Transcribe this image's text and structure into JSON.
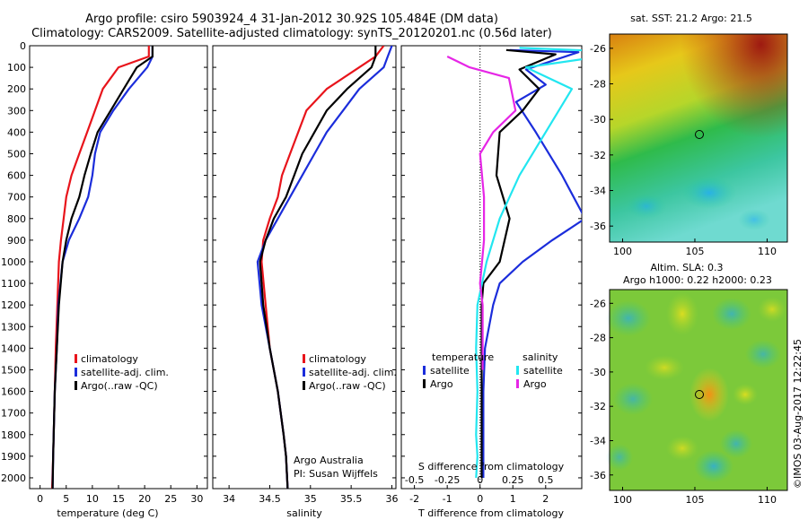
{
  "header": {
    "line1": "Argo profile: csiro 5903924_4 31-Jan-2012 30.92S 105.484E (DM data)",
    "line2": "Climatology: CARS2009. Satellite-adjusted climatology: synTS_20120201.nc (0.56d later)"
  },
  "colors": {
    "climatology": "#e8141b",
    "satellite": "#1b2ddb",
    "argo": "#000000",
    "satellite_sal": "#22e6f0",
    "argo_sal": "#e626e6"
  },
  "depth_ticks": [
    "0",
    "100",
    "200",
    "300",
    "400",
    "500",
    "600",
    "700",
    "800",
    "900",
    "1000",
    "1100",
    "1200",
    "1300",
    "1400",
    "1500",
    "1600",
    "1700",
    "1800",
    "1900",
    "2000"
  ],
  "temp_panel": {
    "xlabel": "temperature (deg C)",
    "xticks": [
      "0",
      "5",
      "10",
      "15",
      "20",
      "25",
      "30"
    ],
    "legend": [
      "climatology",
      "satellite-adj. clim.",
      "Argo(..raw -QC)"
    ]
  },
  "sal_panel": {
    "xlabel": "salinity",
    "xticks": [
      "34",
      "34.5",
      "35",
      "35.5",
      "36"
    ],
    "legend": [
      "climatology",
      "satellite-adj. clim.",
      "Argo(..raw -QC)"
    ],
    "note1": "Argo Australia",
    "note2": "PI: Susan Wijffels"
  },
  "diff_panel": {
    "xlabel": "T difference from climatology",
    "xlabel_top": "S difference from climatology",
    "xticks_t": [
      "-2",
      "-1",
      "0",
      "1",
      "2"
    ],
    "xticks_s": [
      "-0.5",
      "-0.25",
      "0",
      "0.25",
      "0.5"
    ],
    "legend_head_t": "temperature",
    "legend_head_s": "salinity",
    "legend_t": [
      "satellite",
      "Argo"
    ],
    "legend_s": [
      "satellite",
      "Argo"
    ]
  },
  "map_sst": {
    "title": "sat. SST: 21.2  Argo: 21.5",
    "yticks": [
      "-26",
      "-28",
      "-30",
      "-32",
      "-34",
      "-36"
    ],
    "xticks": [
      "100",
      "105",
      "110"
    ]
  },
  "map_sla": {
    "title1": "Altim. SLA: 0.3",
    "title2": "Argo h1000: 0.22  h2000: 0.23",
    "yticks": [
      "-26",
      "-28",
      "-30",
      "-32",
      "-34",
      "-36"
    ],
    "xticks": [
      "100",
      "105",
      "110"
    ]
  },
  "copyright": "©IMOS 03-Aug-2017 12:22:45",
  "chart_data": [
    {
      "type": "line",
      "xlabel": "temperature (deg C)",
      "ylabel": "",
      "xlim": [
        -2,
        32
      ],
      "ylim": [
        2050,
        0
      ],
      "series": [
        {
          "name": "climatology",
          "x": [
            20.8,
            20.8,
            15,
            12,
            10.5,
            9,
            7.5,
            6,
            5,
            4.5,
            4,
            3.6,
            3.3,
            3,
            2.8,
            2.6,
            2.5,
            2.3
          ],
          "y": [
            0,
            50,
            100,
            200,
            300,
            400,
            500,
            600,
            700,
            800,
            900,
            1000,
            1200,
            1400,
            1600,
            1800,
            1900,
            2050
          ]
        },
        {
          "name": "satellite-adj. clim.",
          "x": [
            21.5,
            21.5,
            20.5,
            17,
            14,
            11.5,
            10.5,
            10,
            9.2,
            7.5,
            5.5,
            4.3,
            3.5,
            3.2,
            2.8,
            2.6,
            2.5,
            2.4
          ],
          "y": [
            0,
            50,
            100,
            200,
            300,
            400,
            500,
            600,
            700,
            800,
            900,
            1000,
            1200,
            1400,
            1600,
            1800,
            1900,
            2050
          ]
        },
        {
          "name": "Argo(..raw -QC)",
          "x": [
            21.5,
            21.5,
            18.5,
            16,
            13.5,
            11,
            9.7,
            8.5,
            7.5,
            6,
            5,
            4.3,
            3.6,
            3.2,
            2.8,
            2.6,
            2.5,
            2.4
          ],
          "y": [
            0,
            50,
            100,
            200,
            300,
            400,
            500,
            600,
            700,
            800,
            900,
            1000,
            1200,
            1400,
            1600,
            1800,
            1900,
            2050
          ]
        }
      ]
    },
    {
      "type": "line",
      "xlabel": "salinity",
      "ylabel": "",
      "xlim": [
        33.8,
        36.05
      ],
      "ylim": [
        2050,
        0
      ],
      "series": [
        {
          "name": "climatology",
          "x": [
            35.9,
            35.8,
            35.6,
            35.2,
            34.95,
            34.85,
            34.75,
            34.65,
            34.6,
            34.5,
            34.42,
            34.4,
            34.45,
            34.5,
            34.6,
            34.67,
            34.7,
            34.72
          ],
          "y": [
            0,
            50,
            100,
            200,
            300,
            400,
            500,
            600,
            700,
            800,
            900,
            1000,
            1200,
            1400,
            1600,
            1800,
            1900,
            2050
          ]
        },
        {
          "name": "satellite-adj. clim.",
          "x": [
            36,
            35.95,
            35.9,
            35.6,
            35.4,
            35.2,
            35.05,
            34.9,
            34.75,
            34.6,
            34.45,
            34.35,
            34.4,
            34.5,
            34.6,
            34.67,
            34.7,
            34.72
          ],
          "y": [
            0,
            50,
            100,
            200,
            300,
            400,
            500,
            600,
            700,
            800,
            900,
            1000,
            1200,
            1400,
            1600,
            1800,
            1900,
            2050
          ]
        },
        {
          "name": "Argo(..raw -QC)",
          "x": [
            35.8,
            35.8,
            35.75,
            35.45,
            35.2,
            35.05,
            34.9,
            34.8,
            34.7,
            34.55,
            34.45,
            34.38,
            34.42,
            34.5,
            34.6,
            34.67,
            34.7,
            34.72
          ],
          "y": [
            0,
            50,
            100,
            200,
            300,
            400,
            500,
            600,
            700,
            800,
            900,
            1000,
            1200,
            1400,
            1600,
            1800,
            1900,
            2050
          ]
        }
      ]
    },
    {
      "type": "line",
      "xlabel": "T difference from climatology",
      "xlabel_top": "S difference from climatology",
      "ylabel": "",
      "xlim": [
        -2.4,
        3.1
      ],
      "ylim": [
        2050,
        0
      ],
      "series": [
        {
          "name": "temperature satellite",
          "x": [
            0.9,
            3,
            1.4,
            2,
            1.1,
            1.7,
            2.5,
            3.2,
            2.2,
            1.3,
            0.6,
            0.4,
            0.15,
            0.1,
            0.1,
            0.1
          ],
          "y": [
            20,
            30,
            110,
            180,
            260,
            400,
            600,
            800,
            900,
            1000,
            1100,
            1200,
            1400,
            1600,
            1800,
            2000
          ]
        },
        {
          "name": "temperature Argo",
          "x": [
            0.8,
            2.3,
            1.2,
            1.8,
            1.3,
            0.6,
            0.5,
            0.9,
            0.6,
            0.1,
            0.05,
            0.05,
            0.05,
            0.05,
            0.05
          ],
          "y": [
            20,
            40,
            110,
            200,
            300,
            400,
            600,
            800,
            1000,
            1100,
            1200,
            1400,
            1600,
            1800,
            2000
          ]
        },
        {
          "name": "salinity satellite",
          "x": [
            0.3,
            1.15,
            0.35,
            0.7,
            0.5,
            0.3,
            0.15,
            0.05,
            -0.02,
            -0.03,
            -0.02,
            -0.03,
            -0.02,
            -0.03
          ],
          "y": [
            10,
            30,
            100,
            200,
            400,
            600,
            800,
            1000,
            1200,
            1400,
            1600,
            1800,
            1900,
            2000
          ]
        },
        {
          "name": "salinity Argo",
          "x": [
            -0.25,
            -0.08,
            0.22,
            0.27,
            0.1,
            0.0,
            0.03,
            0.03,
            0.0,
            0.02,
            0.02,
            0.02
          ],
          "y": [
            50,
            100,
            150,
            300,
            400,
            500,
            700,
            900,
            1100,
            1200,
            1400,
            1500
          ]
        }
      ]
    }
  ]
}
